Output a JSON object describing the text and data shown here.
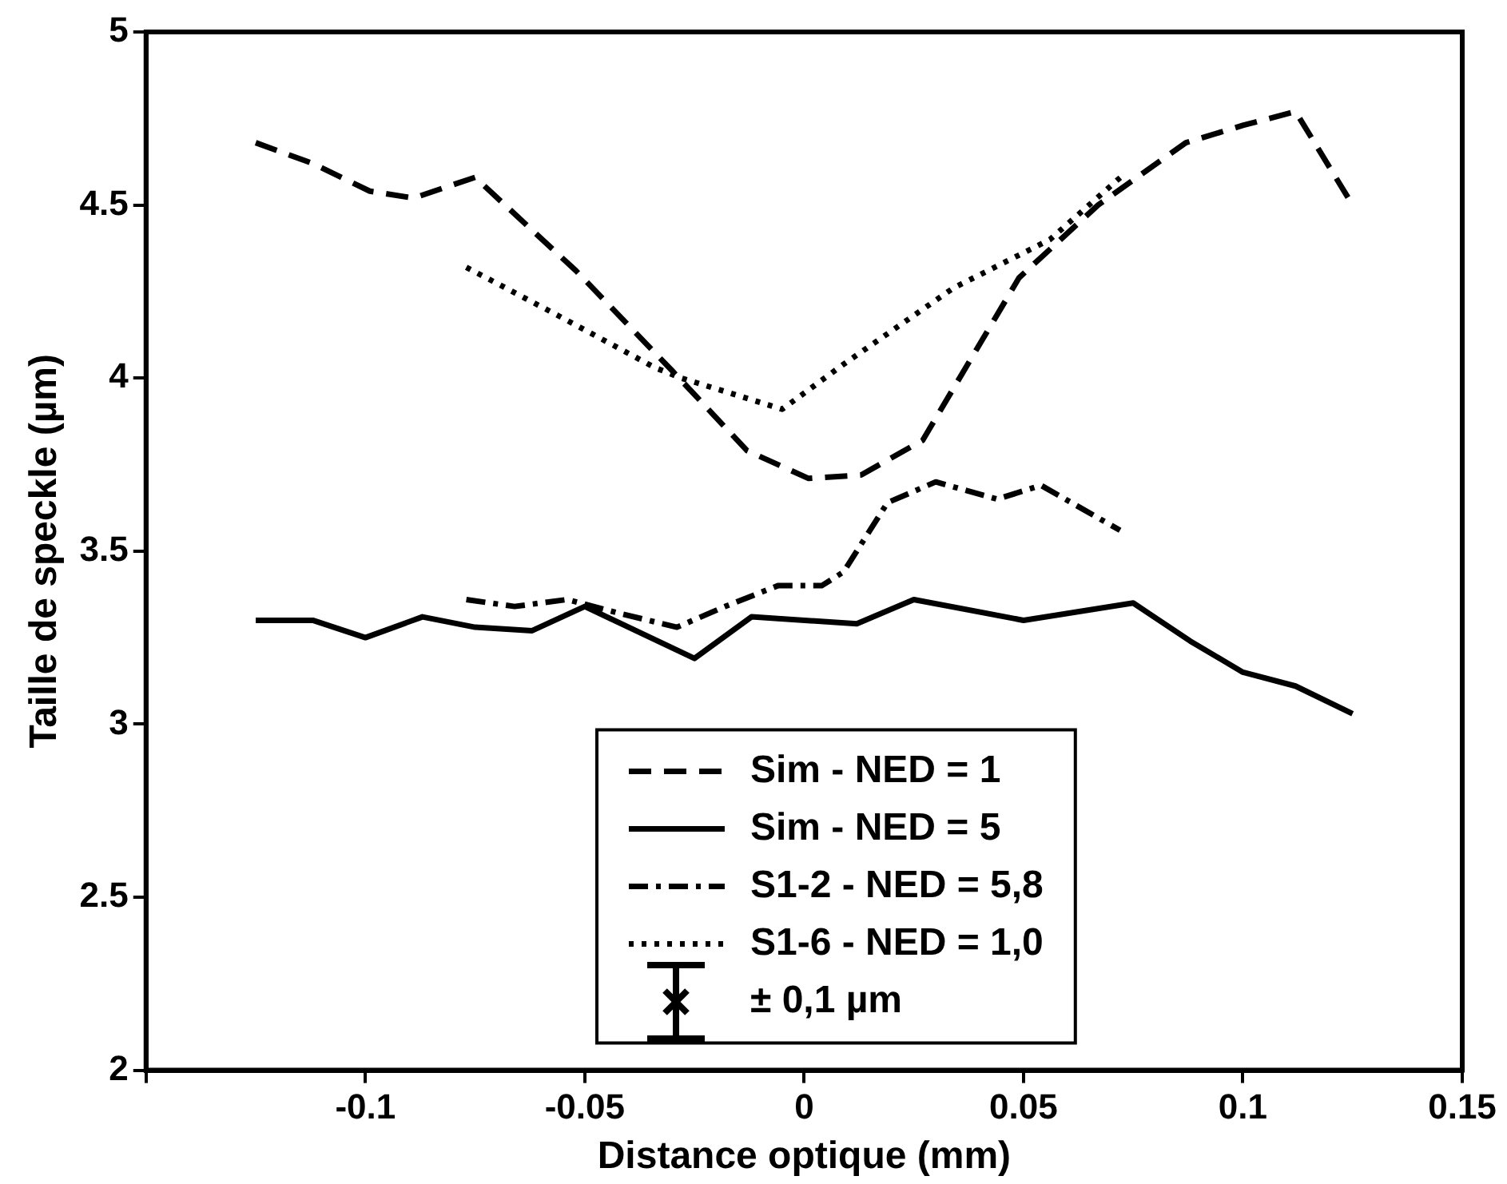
{
  "chart_data": {
    "type": "line",
    "xlabel": "Distance optique (mm)",
    "ylabel": "Taille de speckle (µm)",
    "xlim": [
      -0.15,
      0.15
    ],
    "xticks": [
      {
        "value": -0.15,
        "label": null
      },
      -0.1,
      -0.05,
      0,
      0.05,
      0.1,
      0.15
    ],
    "ylim": [
      2,
      5
    ],
    "yticks": [
      2,
      2.5,
      3,
      3.5,
      4,
      4.5,
      5
    ],
    "grid": false,
    "legend": "bottom",
    "marker": "none",
    "series": [
      {
        "name": "Sim - NED = 1",
        "color": "#000000",
        "line_style": "dashed",
        "x": [
          -0.125,
          -0.112,
          -0.099,
          -0.089,
          -0.075,
          -0.052,
          -0.03,
          -0.013,
          0.001,
          0.013,
          0.027,
          0.049,
          0.067,
          0.087,
          0.1,
          0.112,
          0.125
        ],
        "values": [
          4.68,
          4.62,
          4.54,
          4.52,
          4.58,
          4.31,
          4.02,
          3.79,
          3.71,
          3.72,
          3.82,
          4.29,
          4.5,
          4.68,
          4.73,
          4.77,
          4.5
        ]
      },
      {
        "name": "Sim - NED = 5",
        "color": "#000000",
        "line_style": "solid",
        "x": [
          -0.125,
          -0.112,
          -0.1,
          -0.087,
          -0.075,
          -0.062,
          -0.05,
          -0.025,
          -0.012,
          0.012,
          0.025,
          0.05,
          0.075,
          0.088,
          0.1,
          0.112,
          0.125
        ],
        "values": [
          3.3,
          3.3,
          3.25,
          3.31,
          3.28,
          3.27,
          3.34,
          3.19,
          3.31,
          3.29,
          3.36,
          3.3,
          3.35,
          3.24,
          3.15,
          3.11,
          3.03
        ]
      },
      {
        "name": "S1-2 - NED = 5,8",
        "color": "#000000",
        "line_style": "dashdot",
        "x": [
          -0.077,
          -0.066,
          -0.054,
          -0.042,
          -0.029,
          -0.018,
          -0.006,
          0.004,
          0.009,
          0.019,
          0.03,
          0.044,
          0.054,
          0.072
        ],
        "values": [
          3.36,
          3.34,
          3.36,
          3.32,
          3.28,
          3.34,
          3.4,
          3.4,
          3.44,
          3.64,
          3.7,
          3.65,
          3.69,
          3.56
        ]
      },
      {
        "name": "S1-6 - NED = 1,0",
        "color": "#000000",
        "line_style": "dotted",
        "x": [
          -0.077,
          -0.056,
          -0.034,
          -0.028,
          -0.005,
          0.009,
          0.034,
          0.056,
          0.073
        ],
        "values": [
          4.32,
          4.18,
          4.03,
          4.0,
          3.91,
          4.04,
          4.26,
          4.4,
          4.59
        ]
      }
    ],
    "annotations": [
      "± 0,1 µm"
    ]
  }
}
